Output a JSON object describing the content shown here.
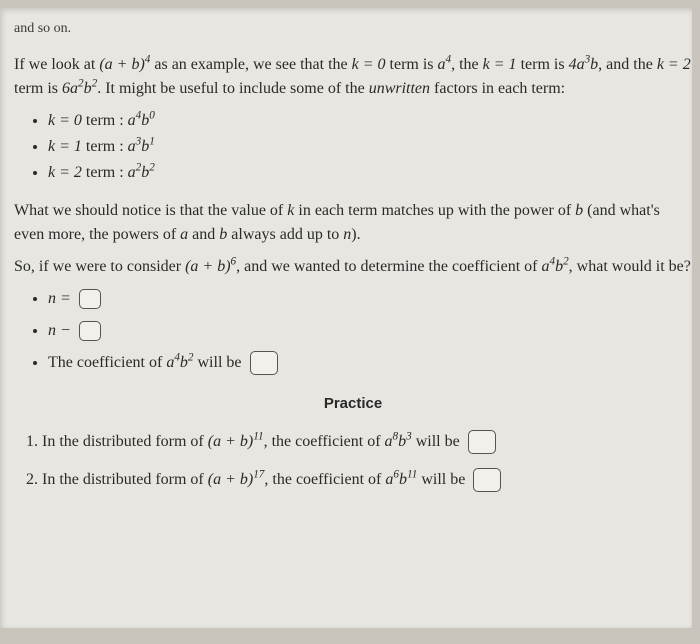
{
  "cutoff": "and so on.",
  "p1_a": "If we look at ",
  "p1_expr1": "(a + b)",
  "p1_pow1": "4",
  "p1_b": " as an example, we see that the ",
  "p1_k0": "k = 0",
  "p1_c": " term is ",
  "p1_a4": "a",
  "p1_a4_pow": "4",
  "p1_d": ", the ",
  "p1_k1": "k = 1",
  "p1_e": " term is ",
  "p1_4a3b": "4a",
  "p1_4a3b_pow": "3",
  "p1_4a3b_b": "b",
  "p1_f": ", and the ",
  "p1_k2": "k = 2",
  "p1_g": " term is ",
  "p1_6a2b2_c": "6a",
  "p1_6a2b2_p1": "2",
  "p1_6a2b2_b": "b",
  "p1_6a2b2_p2": "2",
  "p1_h": ". It might be useful to include some of the ",
  "p1_unwritten": "unwritten",
  "p1_i": " factors in each term:",
  "l1_a": "k = 0",
  "l1_b": " term : ",
  "l1_expr_a": "a",
  "l1_expr_ap": "4",
  "l1_expr_b": "b",
  "l1_expr_bp": "0",
  "l2_a": "k = 1",
  "l2_b": " term : ",
  "l2_expr_a": "a",
  "l2_expr_ap": "3",
  "l2_expr_b": "b",
  "l2_expr_bp": "1",
  "l3_a": "k = 2",
  "l3_b": " term : ",
  "l3_expr_a": "a",
  "l3_expr_ap": "2",
  "l3_expr_b": "b",
  "l3_expr_bp": "2",
  "p2_a": "What we should notice is that the value of ",
  "p2_k": "k",
  "p2_b": " in each term matches up with the power of ",
  "p2_bvar": "b",
  "p2_c": " (and what's even more, the powers of ",
  "p2_avar": "a",
  "p2_d": " and ",
  "p2_bvar2": "b",
  "p2_e": " always add up to ",
  "p2_n": "n",
  "p2_f": ").",
  "p3_a": "So, if we were to consider ",
  "p3_expr": "(a + b)",
  "p3_pow": "6",
  "p3_b": ", and we wanted to determine the coefficient of ",
  "p3_a4b2_a": "a",
  "p3_a4b2_ap": "4",
  "p3_a4b2_b": "b",
  "p3_a4b2_bp": "2",
  "p3_c": ", what would it be?",
  "b1": "n =",
  "b2": "n −",
  "b3_a": "The coefficient of ",
  "b3_expr_a": "a",
  "b3_expr_ap": "4",
  "b3_expr_b": "b",
  "b3_expr_bp": "2",
  "b3_b": " will be ",
  "practice": "Practice",
  "q1_a": "In the distributed form of ",
  "q1_expr": "(a + b)",
  "q1_pow": "11",
  "q1_b": ", the coefficient of ",
  "q1_t_a": "a",
  "q1_t_ap": "8",
  "q1_t_b": "b",
  "q1_t_bp": "3",
  "q1_c": " will be ",
  "q2_a": "In the distributed form of ",
  "q2_expr": "(a + b)",
  "q2_pow": "17",
  "q2_b": ", the coefficient of ",
  "q2_t_a": "a",
  "q2_t_ap": "6",
  "q2_t_b": "b",
  "q2_t_bp": "11",
  "q2_c": " will be "
}
